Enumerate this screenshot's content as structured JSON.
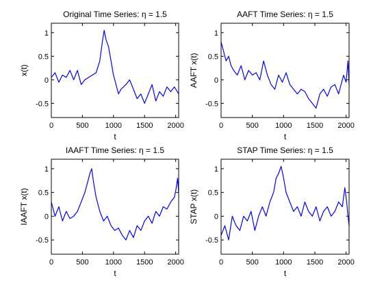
{
  "colors": {
    "background": "#ffffff",
    "series": "#0000ff",
    "axes": "#000000"
  },
  "chart_data": [
    {
      "type": "line",
      "title": "Original Time Series: η = 1.5",
      "xlabel": "t",
      "ylabel": "x(t)",
      "xlim": [
        0,
        2048
      ],
      "ylim": [
        -0.8,
        1.2
      ],
      "xticks": [
        0,
        500,
        1000,
        1500,
        2000
      ],
      "xtick_labels": [
        "0",
        "500",
        "1000",
        "1500",
        "2000"
      ],
      "yticks": [
        -0.5,
        0,
        0.5,
        1
      ],
      "ytick_labels": [
        "-0.5",
        "0",
        "0.5",
        "1"
      ],
      "grid": false,
      "series": [
        {
          "x": [
            0,
            60,
            120,
            180,
            240,
            300,
            360,
            420,
            480,
            540,
            600,
            660,
            720,
            780,
            820,
            850,
            880,
            920,
            960,
            1000,
            1040,
            1080,
            1120,
            1160,
            1200,
            1260,
            1320,
            1380,
            1440,
            1500,
            1560,
            1620,
            1680,
            1740,
            1800,
            1860,
            1920,
            1980,
            2048
          ],
          "y": [
            0.05,
            0.15,
            -0.05,
            0.1,
            0.05,
            0.2,
            0.0,
            0.2,
            -0.1,
            0.0,
            0.05,
            0.1,
            0.15,
            0.4,
            0.8,
            1.05,
            0.85,
            0.7,
            0.4,
            0.1,
            -0.1,
            -0.3,
            -0.2,
            -0.15,
            -0.1,
            0.0,
            -0.2,
            -0.4,
            -0.3,
            -0.5,
            -0.3,
            -0.1,
            -0.45,
            -0.25,
            -0.35,
            -0.15,
            -0.25,
            -0.15,
            -0.3
          ]
        }
      ]
    },
    {
      "type": "line",
      "title": "AAFT Time Series: η = 1.5",
      "xlabel": "t",
      "ylabel": "AAFT x(t)",
      "xlim": [
        0,
        2048
      ],
      "ylim": [
        -0.8,
        1.2
      ],
      "xticks": [
        0,
        500,
        1000,
        1500,
        2000
      ],
      "xtick_labels": [
        "0",
        "500",
        "1000",
        "1500",
        "2000"
      ],
      "yticks": [
        -0.5,
        0,
        0.5,
        1
      ],
      "ytick_labels": [
        "-0.5",
        "0",
        "0.5",
        "1"
      ],
      "grid": false,
      "series": [
        {
          "x": [
            0,
            40,
            80,
            120,
            160,
            200,
            260,
            320,
            380,
            440,
            500,
            560,
            620,
            680,
            740,
            800,
            860,
            920,
            980,
            1040,
            1100,
            1160,
            1220,
            1280,
            1340,
            1400,
            1460,
            1520,
            1580,
            1640,
            1700,
            1760,
            1820,
            1880,
            1920,
            1960,
            2000,
            2030,
            2048
          ],
          "y": [
            0.8,
            0.6,
            0.4,
            0.5,
            0.3,
            0.2,
            0.1,
            0.3,
            0.0,
            0.2,
            0.1,
            0.15,
            0.0,
            0.4,
            0.1,
            -0.1,
            -0.2,
            0.1,
            -0.05,
            0.15,
            -0.1,
            -0.2,
            -0.3,
            -0.2,
            -0.25,
            -0.4,
            -0.5,
            -0.6,
            -0.3,
            -0.2,
            -0.35,
            -0.15,
            -0.1,
            -0.3,
            -0.1,
            0.1,
            -0.05,
            0.4,
            -0.1
          ]
        }
      ]
    },
    {
      "type": "line",
      "title": "IAAFT Time Series: η = 1.5",
      "xlabel": "t",
      "ylabel": "IAAFT x(t)",
      "xlim": [
        0,
        2048
      ],
      "ylim": [
        -0.8,
        1.2
      ],
      "xticks": [
        0,
        500,
        1000,
        1500,
        2000
      ],
      "xtick_labels": [
        "0",
        "500",
        "1000",
        "1500",
        "2000"
      ],
      "yticks": [
        -0.5,
        0,
        0.5,
        1
      ],
      "ytick_labels": [
        "-0.5",
        "0",
        "0.5",
        "1"
      ],
      "grid": false,
      "series": [
        {
          "x": [
            0,
            60,
            120,
            180,
            240,
            300,
            360,
            420,
            480,
            540,
            580,
            620,
            650,
            680,
            720,
            780,
            840,
            900,
            960,
            1020,
            1080,
            1140,
            1200,
            1260,
            1320,
            1380,
            1440,
            1500,
            1560,
            1620,
            1680,
            1740,
            1800,
            1860,
            1920,
            1980,
            2010,
            2030,
            2048
          ],
          "y": [
            0.3,
            0.0,
            0.2,
            -0.1,
            0.1,
            -0.05,
            0.0,
            0.1,
            0.3,
            0.5,
            0.7,
            0.9,
            1.0,
            0.7,
            0.4,
            0.1,
            -0.1,
            0.0,
            -0.2,
            -0.3,
            -0.25,
            -0.4,
            -0.5,
            -0.3,
            -0.45,
            -0.2,
            -0.3,
            -0.1,
            0.0,
            -0.15,
            0.1,
            0.0,
            0.2,
            0.15,
            0.3,
            0.4,
            0.6,
            0.8,
            0.5
          ]
        }
      ]
    },
    {
      "type": "line",
      "title": "STAP Time Series: η = 1.5",
      "xlabel": "t",
      "ylabel": "STAP x(t)",
      "xlim": [
        0,
        2048
      ],
      "ylim": [
        -0.8,
        1.2
      ],
      "xticks": [
        0,
        500,
        1000,
        1500,
        2000
      ],
      "xtick_labels": [
        "0",
        "500",
        "1000",
        "1500",
        "2000"
      ],
      "yticks": [
        -0.5,
        0,
        0.5,
        1
      ],
      "ytick_labels": [
        "-0.5",
        "0",
        "0.5",
        "1"
      ],
      "grid": false,
      "series": [
        {
          "x": [
            0,
            60,
            120,
            180,
            240,
            300,
            360,
            420,
            480,
            540,
            600,
            660,
            720,
            780,
            840,
            880,
            920,
            960,
            1000,
            1040,
            1100,
            1160,
            1220,
            1280,
            1340,
            1400,
            1460,
            1520,
            1580,
            1640,
            1700,
            1760,
            1820,
            1880,
            1940,
            1980,
            2010,
            2030,
            2048
          ],
          "y": [
            -0.4,
            -0.2,
            -0.5,
            0.0,
            -0.2,
            -0.3,
            0.0,
            -0.1,
            0.1,
            -0.3,
            0.0,
            0.2,
            0.0,
            0.3,
            0.5,
            0.8,
            0.9,
            1.05,
            0.8,
            0.5,
            0.3,
            0.1,
            0.2,
            0.0,
            0.3,
            0.1,
            0.0,
            0.2,
            -0.1,
            0.1,
            0.2,
            0.0,
            0.1,
            0.3,
            0.2,
            0.6,
            0.3,
            0.0,
            -0.2
          ]
        }
      ]
    }
  ]
}
